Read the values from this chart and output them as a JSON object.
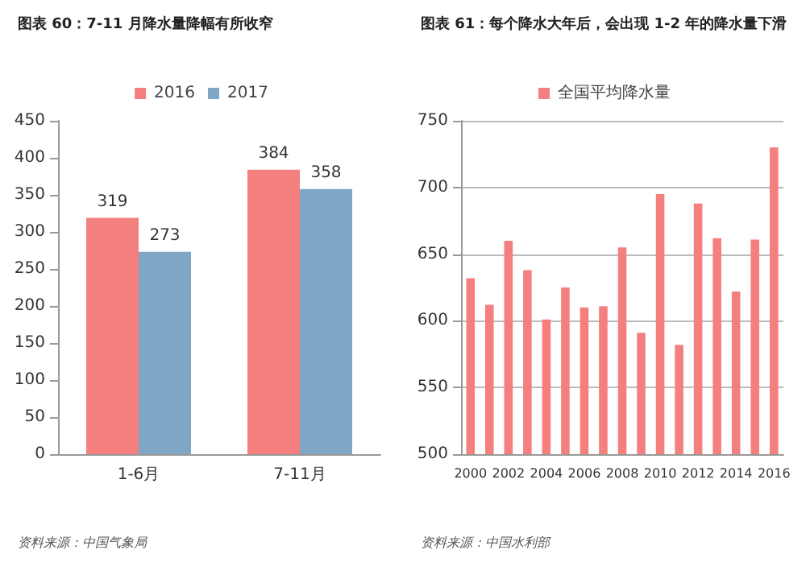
{
  "chart_data": [
    {
      "type": "bar",
      "title": "图表 60：7-11 月降水量降幅有所收窄",
      "categories": [
        "1-6月",
        "7-11月"
      ],
      "series": [
        {
          "name": "2016",
          "color": "#f47f7f",
          "values": [
            319,
            384
          ]
        },
        {
          "name": "2017",
          "color": "#7fa6c4",
          "values": [
            273,
            358
          ]
        }
      ],
      "ylim": [
        0,
        450
      ],
      "yticks": [
        0,
        50,
        100,
        150,
        200,
        250,
        300,
        350,
        400,
        450
      ],
      "data_labels": true,
      "grid": false,
      "legend": "top",
      "annotations": [
        "资料来源：中国气象局"
      ]
    },
    {
      "type": "bar",
      "title": "图表 61：每个降水大年后，会出现 1-2 年的降水量下滑",
      "categories": [
        "2000",
        null,
        "2002",
        null,
        "2004",
        null,
        "2006",
        null,
        "2008",
        null,
        "2010",
        null,
        "2012",
        null,
        "2014",
        null,
        "2016"
      ],
      "series": [
        {
          "name": "全国平均降水量",
          "color": "#f47f7f",
          "values": [
            632,
            612,
            660,
            638,
            601,
            625,
            610,
            611,
            655,
            591,
            695,
            582,
            688,
            662,
            622,
            661,
            730
          ]
        }
      ],
      "ylim": [
        500,
        750
      ],
      "yticks": [
        500,
        550,
        600,
        650,
        700,
        750
      ],
      "grid": "y",
      "legend": "top",
      "annotations": [
        "资料来源：中国水利部"
      ]
    }
  ]
}
